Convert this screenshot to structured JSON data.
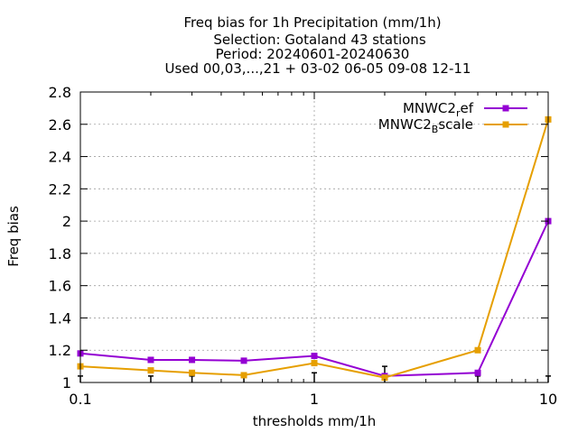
{
  "chart_data": {
    "type": "line",
    "title_lines": [
      "Freq bias  for 1h Precipitation (mm/1h)",
      "Selection: Gotaland      43 stations",
      "Period: 20240601-20240630",
      "Used 00,03,...,21 + 03-02 06-05 09-08 12-11"
    ],
    "xlabel": "thresholds mm/1h",
    "ylabel": "Freq bias",
    "x_scale": "log",
    "xlim": [
      0.1,
      10
    ],
    "ylim": [
      1.0,
      2.8
    ],
    "x_ticks": [
      0.1,
      1,
      10
    ],
    "x_tick_labels": [
      "0.1",
      "1",
      "10"
    ],
    "y_ticks": [
      1.0,
      1.2,
      1.4,
      1.6,
      1.8,
      2.0,
      2.2,
      2.4,
      2.6,
      2.8
    ],
    "y_tick_labels": [
      "1",
      "1.2",
      "1.4",
      "1.6",
      "1.8",
      "2",
      "2.2",
      "2.4",
      "2.6",
      "2.8"
    ],
    "grid": true,
    "legend_position": "top-right",
    "x": [
      0.1,
      0.2,
      0.3,
      0.5,
      1.0,
      2.0,
      5.0,
      10.0
    ],
    "series": [
      {
        "name": "MNWC2_ref",
        "legend_base": "MNWC2",
        "legend_sub": "r",
        "legend_tail": "ef",
        "color": "#9400d3",
        "values": [
          1.18,
          1.14,
          1.14,
          1.135,
          1.165,
          1.04,
          1.06,
          2.0
        ]
      },
      {
        "name": "MNWC2_Bscale",
        "legend_base": "MNWC2",
        "legend_sub": "B",
        "legend_tail": "scale",
        "color": "#e69f00",
        "values": [
          1.1,
          1.075,
          1.06,
          1.045,
          1.12,
          1.03,
          1.2,
          2.63
        ]
      }
    ],
    "error_bars": {
      "x": [
        0.1,
        0.2,
        0.3,
        0.5,
        1.0,
        2.0,
        5.0,
        10.0
      ],
      "low": [
        1.0,
        1.0,
        1.0,
        1.0,
        1.0,
        1.0,
        1.0,
        1.0
      ],
      "high": [
        1.04,
        1.04,
        1.04,
        1.04,
        1.06,
        1.1,
        1.04,
        1.04
      ]
    }
  }
}
